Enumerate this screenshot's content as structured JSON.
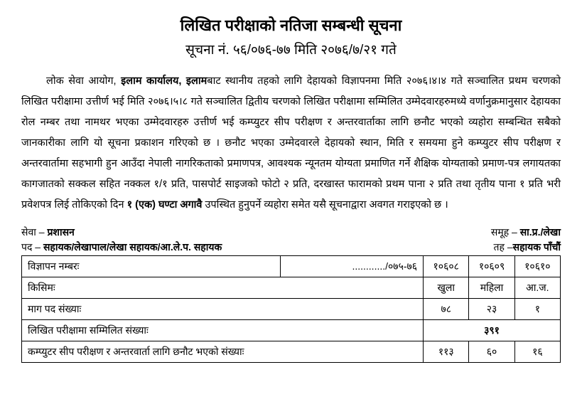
{
  "header": {
    "title": "लिखित परीक्षाको नतिजा सम्बन्धी सूचना",
    "subtitle": "सूचना नं. ५६/०७६-७७ मिति २०७६/७/२१ गते"
  },
  "body": {
    "pre1": "लोक सेवा आयोग, ",
    "bold1": "इलाम कार्यालय, इलाम",
    "mid1": "बाट स्थानीय तहको लागि देहायको विज्ञापनमा मिति २०७६।४।४ गते सञ्चालित प्रथम चरणको लिखित परीक्षामा उत्तीर्ण भई मिति २०७६।५।८ गते सञ्चालित द्वितीय चरणको लिखित परीक्षामा सम्मिलित उम्मेदवारहरुमध्ये वर्णानुक्रमानुसार देहायका रोल नम्बर तथा नामथर भएका उम्मेदवारहरु उत्तीर्ण भई कम्प्युटर सीप परीक्षण र अन्तरवार्ताका लागि छनौट भएको व्यहोरा सम्बन्धित सबैको जानकारीका लागि यो सूचना प्रकाशन गरिएको छ । छनौट भएका उम्मेदवारले देहायको स्थान, मिति र समयमा हुने कम्प्युटर सीप परीक्षण र अन्तरवार्तामा सहभागी हुन आउँदा नेपाली नागरिकताको प्रमाणपत्र, आवश्यक न्यूनतम योग्यता प्रमाणित गर्ने शैक्षिक योग्यताको प्रमाण-पत्र लगायतका कागजातको सक्कल सहित नक्कल १/१ प्रति, पासपोर्ट साइजको फोटो २ प्रति, दरखास्त फारामको प्रथम पाना २ प्रति तथा तृतीय पाना १ प्रति भरी प्रवेशपत्र लिई तोकिएको दिन ",
    "bold2": "१ (एक) घण्टा अगावै",
    "post1": " उपस्थित हुनुपर्ने व्यहोरा समेत यसै सूचनाद्वारा अवगत गराइएको  छ ।"
  },
  "meta": {
    "sewa_label": "सेवा – ",
    "sewa_value": "प्रशासन",
    "samuha_label": "समूह – ",
    "samuha_value": "सा.प्र./लेखा",
    "pad_label": "पद – ",
    "pad_value": "सहायक/लेखापाल/लेखा सहायक/आ.ले.प. सहायक",
    "taha_label": "तह –",
    "taha_value": "सहायक पाँचौं"
  },
  "table": {
    "rows": [
      {
        "label": "विज्ञापन नम्बरः",
        "c1": "............/०७५-७६",
        "c2": "१०६०८",
        "c3": "१०६०९",
        "c4": "१०६१०",
        "c1_align": "right"
      },
      {
        "label": "किसिमः",
        "c2": "खुला",
        "c3": "महिला",
        "c4": "आ.ज."
      },
      {
        "label": "माग पद संख्याः",
        "c2": "७८",
        "c3": "२३",
        "c4": "१"
      },
      {
        "label": "लिखित परीक्षामा सम्मिलित संख्याः",
        "merged": "३९१"
      },
      {
        "label": "कम्प्युटर सीप परीक्षण र अन्तरवार्ता लागि छनौट भएको संख्याः",
        "c2": "११३",
        "c3": "६०",
        "c4": "१६"
      }
    ],
    "colors": {
      "border": "#000000",
      "background": "#ffffff"
    },
    "col_widths_pct": [
      48,
      13,
      13,
      13,
      13
    ]
  }
}
